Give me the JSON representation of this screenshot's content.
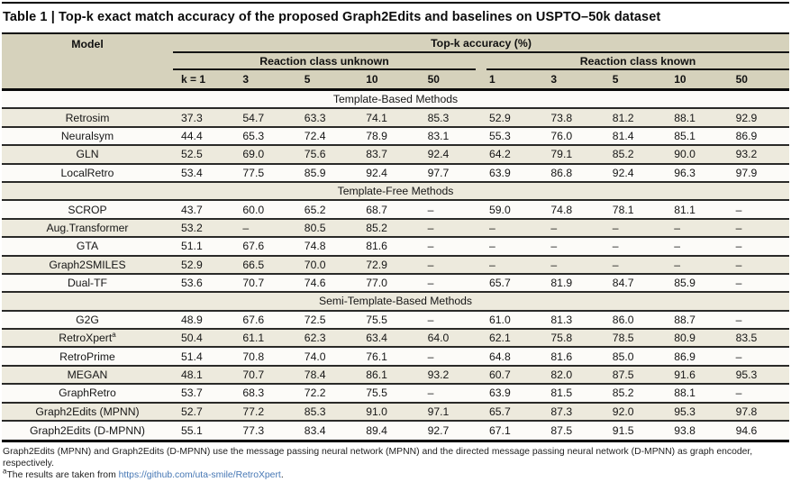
{
  "title": "Table 1 | Top-k exact match accuracy of the proposed Graph2Edits and baselines on USPTO–50k dataset",
  "header": {
    "model_col": "Model",
    "topk_label": "Top-k accuracy (%)",
    "group_unknown": "Reaction class unknown",
    "group_known": "Reaction class known",
    "k_labels": [
      "k = 1",
      "3",
      "5",
      "10",
      "50",
      "1",
      "3",
      "5",
      "10",
      "50"
    ]
  },
  "sections": [
    {
      "label": "Template-Based Methods",
      "rows": [
        {
          "model": "Retrosim",
          "values": [
            "37.3",
            "54.7",
            "63.3",
            "74.1",
            "85.3",
            "52.9",
            "73.8",
            "81.2",
            "88.1",
            "92.9"
          ]
        },
        {
          "model": "Neuralsym",
          "values": [
            "44.4",
            "65.3",
            "72.4",
            "78.9",
            "83.1",
            "55.3",
            "76.0",
            "81.4",
            "85.1",
            "86.9"
          ]
        },
        {
          "model": "GLN",
          "values": [
            "52.5",
            "69.0",
            "75.6",
            "83.7",
            "92.4",
            "64.2",
            "79.1",
            "85.2",
            "90.0",
            "93.2"
          ]
        },
        {
          "model": "LocalRetro",
          "values": [
            "53.4",
            "77.5",
            "85.9",
            "92.4",
            "97.7",
            "63.9",
            "86.8",
            "92.4",
            "96.3",
            "97.9"
          ]
        }
      ]
    },
    {
      "label": "Template-Free Methods",
      "rows": [
        {
          "model": "SCROP",
          "values": [
            "43.7",
            "60.0",
            "65.2",
            "68.7",
            "–",
            "59.0",
            "74.8",
            "78.1",
            "81.1",
            "–"
          ]
        },
        {
          "model": "Aug.Transformer",
          "values": [
            "53.2",
            "–",
            "80.5",
            "85.2",
            "–",
            "–",
            "–",
            "–",
            "–",
            "–"
          ]
        },
        {
          "model": "GTA",
          "values": [
            "51.1",
            "67.6",
            "74.8",
            "81.6",
            "–",
            "–",
            "–",
            "–",
            "–",
            "–"
          ]
        },
        {
          "model": "Graph2SMILES",
          "values": [
            "52.9",
            "66.5",
            "70.0",
            "72.9",
            "–",
            "–",
            "–",
            "–",
            "–",
            "–"
          ]
        },
        {
          "model": "Dual-TF",
          "values": [
            "53.6",
            "70.7",
            "74.6",
            "77.0",
            "–",
            "65.7",
            "81.9",
            "84.7",
            "85.9",
            "–"
          ]
        }
      ]
    },
    {
      "label": "Semi-Template-Based Methods",
      "rows": [
        {
          "model": "G2G",
          "values": [
            "48.9",
            "67.6",
            "72.5",
            "75.5",
            "–",
            "61.0",
            "81.3",
            "86.0",
            "88.7",
            "–"
          ]
        },
        {
          "model": "RetroXpert",
          "model_sup": "a",
          "values": [
            "50.4",
            "61.1",
            "62.3",
            "63.4",
            "64.0",
            "62.1",
            "75.8",
            "78.5",
            "80.9",
            "83.5"
          ]
        },
        {
          "model": "RetroPrime",
          "values": [
            "51.4",
            "70.8",
            "74.0",
            "76.1",
            "–",
            "64.8",
            "81.6",
            "85.0",
            "86.9",
            "–"
          ]
        },
        {
          "model": "MEGAN",
          "values": [
            "48.1",
            "70.7",
            "78.4",
            "86.1",
            "93.2",
            "60.7",
            "82.0",
            "87.5",
            "91.6",
            "95.3"
          ]
        },
        {
          "model": "GraphRetro",
          "values": [
            "53.7",
            "68.3",
            "72.2",
            "75.5",
            "–",
            "63.9",
            "81.5",
            "85.2",
            "88.1",
            "–"
          ]
        },
        {
          "model": "Graph2Edits (MPNN)",
          "values": [
            "52.7",
            "77.2",
            "85.3",
            "91.0",
            "97.1",
            "65.7",
            "87.3",
            "92.0",
            "95.3",
            "97.8"
          ]
        },
        {
          "model": "Graph2Edits (D-MPNN)",
          "values": [
            "55.1",
            "77.3",
            "83.4",
            "89.4",
            "92.7",
            "67.1",
            "87.5",
            "91.5",
            "93.8",
            "94.6"
          ]
        }
      ]
    }
  ],
  "footnotes": {
    "line1": "Graph2Edits (MPNN) and Graph2Edits (D-MPNN) use the message passing neural network (MPNN) and the directed message passing neural network (D-MPNN) as graph encoder, respectively.",
    "line2_sup": "a",
    "line2_prefix": "The results are taken from ",
    "line2_link": "https://github.com/uta-smile/RetroXpert",
    "line2_suffix": "."
  },
  "colors": {
    "header_band_bg": "#d6d2bc",
    "row_beige_bg": "#edeadd",
    "row_white_bg": "#fcfbf8",
    "rule_color": "#0a0a0a",
    "link_color": "#4677b4"
  }
}
